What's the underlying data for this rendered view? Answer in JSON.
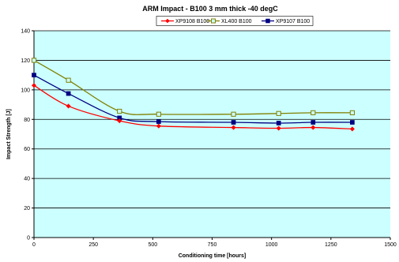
{
  "chart_data": {
    "type": "line",
    "title": "ARM Impact - B100 3 mm thick -40 degC",
    "xlabel": "Conditioning time [hours]",
    "ylabel": "Impact Strength [J]",
    "xlim": [
      0,
      1500
    ],
    "ylim": [
      0,
      140
    ],
    "xticks": [
      0,
      250,
      500,
      750,
      1000,
      1250,
      1500
    ],
    "yticks": [
      0,
      20,
      40,
      60,
      80,
      100,
      120,
      140
    ],
    "grid": "horizontal",
    "legend_position": "top",
    "plot_background": "#ccffff",
    "series": [
      {
        "name": "XP9108 B100",
        "color": "#ff0000",
        "marker": "diamond",
        "x": [
          0,
          145,
          360,
          525,
          840,
          1030,
          1175,
          1340
        ],
        "y": [
          103,
          89,
          79,
          75.5,
          74.5,
          74,
          74.5,
          73.5
        ]
      },
      {
        "name": "XL400 B100",
        "color": "#808000",
        "marker": "square-open",
        "x": [
          0,
          145,
          360,
          525,
          840,
          1030,
          1175,
          1340
        ],
        "y": [
          120,
          106.5,
          85.5,
          83.5,
          83.5,
          84,
          84.5,
          84.5
        ]
      },
      {
        "name": "XP9107 B100",
        "color": "#000080",
        "marker": "square",
        "x": [
          0,
          145,
          360,
          525,
          840,
          1030,
          1175,
          1340
        ],
        "y": [
          110,
          97.5,
          81,
          78.5,
          78,
          77.5,
          78,
          78
        ]
      }
    ]
  }
}
